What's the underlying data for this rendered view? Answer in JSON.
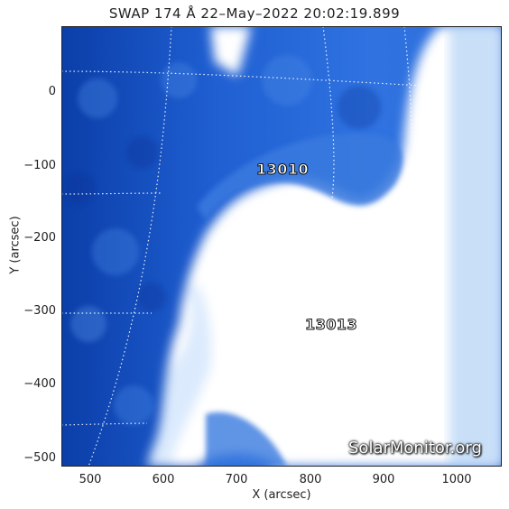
{
  "title": "SWAP 174 Å 22–May–2022 20:02:19.899",
  "axes": {
    "xlabel": "X (arcsec)",
    "ylabel": "Y (arcsec)",
    "x_ticks": [
      "500",
      "600",
      "700",
      "800",
      "900",
      "1000"
    ],
    "y_ticks": [
      "0",
      "−100",
      "−200",
      "−300",
      "−400",
      "−500"
    ]
  },
  "regions": [
    {
      "label": "13010"
    },
    {
      "label": "13013"
    }
  ],
  "watermark": "SolarMonitor.org",
  "colors": {
    "dark_blue": "#0a3fb0",
    "mid_blue": "#2f72e0",
    "light_blue": "#8fc0f5",
    "white": "#ffffff",
    "grid": "#ffffff"
  }
}
